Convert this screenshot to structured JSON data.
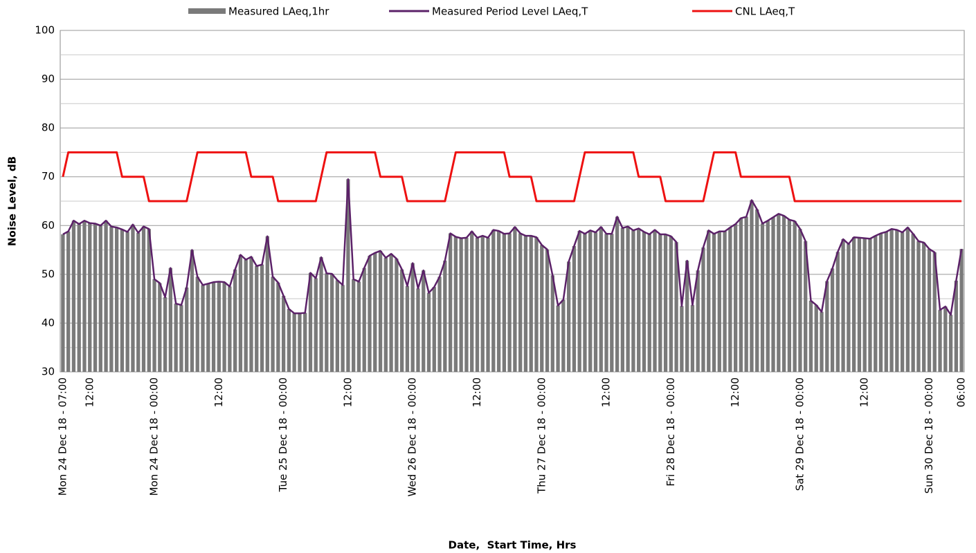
{
  "chart_data": {
    "type": "bar",
    "x_label": "Date,  Start Time, Hrs",
    "y_label": "Noise Level, dB",
    "categories": [
      "Mon 24 Dec 18 - 07:00",
      null,
      null,
      null,
      null,
      "12:00",
      null,
      null,
      null,
      null,
      null,
      null,
      null,
      null,
      null,
      null,
      null,
      "Mon 24 Dec 18 - 00:00",
      null,
      null,
      null,
      null,
      null,
      null,
      null,
      null,
      null,
      null,
      null,
      "12:00",
      null,
      null,
      null,
      null,
      null,
      null,
      null,
      null,
      null,
      null,
      null,
      "Tue 25 Dec 18 - 00:00",
      null,
      null,
      null,
      null,
      null,
      null,
      null,
      null,
      null,
      null,
      null,
      "12:00",
      null,
      null,
      null,
      null,
      null,
      null,
      null,
      null,
      null,
      null,
      null,
      "Wed 26 Dec 18 - 00:00",
      null,
      null,
      null,
      null,
      null,
      null,
      null,
      null,
      null,
      null,
      null,
      "12:00",
      null,
      null,
      null,
      null,
      null,
      null,
      null,
      null,
      null,
      null,
      null,
      "Thu 27 Dec 18 - 00:00",
      null,
      null,
      null,
      null,
      null,
      null,
      null,
      null,
      null,
      null,
      null,
      "12:00",
      null,
      null,
      null,
      null,
      null,
      null,
      null,
      null,
      null,
      null,
      null,
      "Fri 28 Dec 18 - 00:00",
      null,
      null,
      null,
      null,
      null,
      null,
      null,
      null,
      null,
      null,
      null,
      "12:00",
      null,
      null,
      null,
      null,
      null,
      null,
      null,
      null,
      null,
      null,
      null,
      "Sat 29 Dec 18 - 00:00",
      null,
      null,
      null,
      null,
      null,
      null,
      null,
      null,
      null,
      null,
      null,
      "12:00",
      null,
      null,
      null,
      null,
      null,
      null,
      null,
      null,
      null,
      null,
      null,
      "Sun 30 Dec 18 - 00:00",
      null,
      null,
      null,
      null,
      null,
      "06:00"
    ],
    "series": [
      {
        "name": "Measured LAeq,1hr",
        "type": "bar",
        "color": "#7a7a7a",
        "values": [
          58.2,
          58.8,
          61,
          60.3,
          61,
          60.5,
          60.4,
          60,
          61,
          59.8,
          59.6,
          59.2,
          58.7,
          60.2,
          58.5,
          59.8,
          59.3,
          49,
          48.2,
          45.3,
          51.3,
          44,
          43.7,
          47.3,
          55,
          49.5,
          47.8,
          48.1,
          48.4,
          48.5,
          48.4,
          47.5,
          51,
          54,
          53,
          53.6,
          51.7,
          52,
          57.8,
          49.5,
          48.3,
          45.6,
          42.9,
          42,
          42,
          42.1,
          50.3,
          49.2,
          53.5,
          50.2,
          50.1,
          48.8,
          47.8,
          69.5,
          49,
          48.5,
          51.3,
          53.8,
          54.4,
          54.8,
          53.4,
          54.2,
          53.2,
          51,
          47.6,
          52.3,
          47.1,
          50.8,
          46.2,
          47.4,
          49.5,
          52.8,
          58.4,
          57.7,
          57.4,
          57.5,
          58.8,
          57.5,
          57.9,
          57.5,
          59.1,
          58.9,
          58.3,
          58.4,
          59.7,
          58.4,
          57.9,
          57.9,
          57.6,
          56,
          55.1,
          49.8,
          43.6,
          44.8,
          52.6,
          55.8,
          58.9,
          58.3,
          59,
          58.6,
          59.7,
          58.3,
          58.3,
          61.8,
          59.5,
          59.8,
          59,
          59.4,
          58.7,
          58.2,
          59.1,
          58.2,
          58.2,
          57.8,
          56.6,
          43.5,
          52.8,
          43.7,
          50.8,
          55.5,
          59,
          58.3,
          58.8,
          58.8,
          59.6,
          60.3,
          61.5,
          61.8,
          65.2,
          63.3,
          60.4,
          61,
          61.7,
          62.4,
          62,
          61.2,
          60.9,
          59.3,
          56.8,
          44.6,
          43.7,
          42.3,
          48.6,
          51.2,
          54.6,
          57.2,
          56.2,
          57.6,
          57.5,
          57.4,
          57.3,
          57.9,
          58.4,
          58.7,
          59.3,
          59.1,
          58.6,
          59.6,
          58.3,
          56.8,
          56.5,
          55.2,
          54.5,
          42.7,
          43.4,
          41.7,
          48.7,
          55.2
        ]
      },
      {
        "name": "Measured Period Level LAeq,T",
        "type": "line",
        "color": "#5b2168",
        "values": [
          58.2,
          58.8,
          61,
          60.3,
          61,
          60.5,
          60.4,
          60,
          61,
          59.8,
          59.6,
          59.2,
          58.7,
          60.2,
          58.5,
          59.8,
          59.3,
          49,
          48.2,
          45.3,
          51.3,
          44,
          43.7,
          47.3,
          55,
          49.5,
          47.8,
          48.1,
          48.4,
          48.5,
          48.4,
          47.5,
          51,
          54,
          53,
          53.6,
          51.7,
          52,
          57.8,
          49.5,
          48.3,
          45.6,
          42.9,
          42,
          42,
          42.1,
          50.3,
          49.2,
          53.5,
          50.2,
          50.1,
          48.8,
          47.8,
          69.5,
          49,
          48.5,
          51.3,
          53.8,
          54.4,
          54.8,
          53.4,
          54.2,
          53.2,
          51,
          47.6,
          52.3,
          47.1,
          50.8,
          46.2,
          47.4,
          49.5,
          52.8,
          58.4,
          57.7,
          57.4,
          57.5,
          58.8,
          57.5,
          57.9,
          57.5,
          59.1,
          58.9,
          58.3,
          58.4,
          59.7,
          58.4,
          57.9,
          57.9,
          57.6,
          56,
          55.1,
          49.8,
          43.6,
          44.8,
          52.6,
          55.8,
          58.9,
          58.3,
          59,
          58.6,
          59.7,
          58.3,
          58.3,
          61.8,
          59.5,
          59.8,
          59,
          59.4,
          58.7,
          58.2,
          59.1,
          58.2,
          58.2,
          57.8,
          56.6,
          43.5,
          52.8,
          43.7,
          50.8,
          55.5,
          59,
          58.3,
          58.8,
          58.8,
          59.6,
          60.3,
          61.5,
          61.8,
          65.2,
          63.3,
          60.4,
          61,
          61.7,
          62.4,
          62,
          61.2,
          60.9,
          59.3,
          56.8,
          44.6,
          43.7,
          42.3,
          48.6,
          51.2,
          54.6,
          57.2,
          56.2,
          57.6,
          57.5,
          57.4,
          57.3,
          57.9,
          58.4,
          58.7,
          59.3,
          59.1,
          58.6,
          59.6,
          58.3,
          56.8,
          56.5,
          55.2,
          54.5,
          42.7,
          43.4,
          41.7,
          48.7,
          55.2
        ]
      },
      {
        "name": "CNL LAeq,T",
        "type": "line",
        "color": "#ee1111",
        "values": [
          70,
          75,
          75,
          75,
          75,
          75,
          75,
          75,
          75,
          75,
          75,
          70,
          70,
          70,
          70,
          70,
          65,
          65,
          65,
          65,
          65,
          65,
          65,
          65,
          70,
          75,
          75,
          75,
          75,
          75,
          75,
          75,
          75,
          75,
          75,
          70,
          70,
          70,
          70,
          70,
          65,
          65,
          65,
          65,
          65,
          65,
          65,
          65,
          70,
          75,
          75,
          75,
          75,
          75,
          75,
          75,
          75,
          75,
          75,
          70,
          70,
          70,
          70,
          70,
          65,
          65,
          65,
          65,
          65,
          65,
          65,
          65,
          70,
          75,
          75,
          75,
          75,
          75,
          75,
          75,
          75,
          75,
          75,
          70,
          70,
          70,
          70,
          70,
          65,
          65,
          65,
          65,
          65,
          65,
          65,
          65,
          70,
          75,
          75,
          75,
          75,
          75,
          75,
          75,
          75,
          75,
          75,
          70,
          70,
          70,
          70,
          70,
          65,
          65,
          65,
          65,
          65,
          65,
          65,
          65,
          70,
          75,
          75,
          75,
          75,
          75,
          70,
          70,
          70,
          70,
          70,
          70,
          70,
          70,
          70,
          70,
          65,
          65,
          65,
          65,
          65,
          65,
          65,
          65,
          65,
          65,
          65,
          65,
          65,
          65,
          65,
          65,
          65,
          65,
          65,
          65,
          65,
          65,
          65,
          65,
          65,
          65,
          65,
          65,
          65,
          65,
          65,
          65
        ]
      }
    ],
    "ylim": [
      30,
      100
    ],
    "yticks": [
      30,
      40,
      50,
      60,
      70,
      80,
      90,
      100
    ],
    "minor_yticks": [
      35,
      45,
      55,
      65,
      75,
      85,
      95
    ],
    "grid": true,
    "legend": "top"
  }
}
